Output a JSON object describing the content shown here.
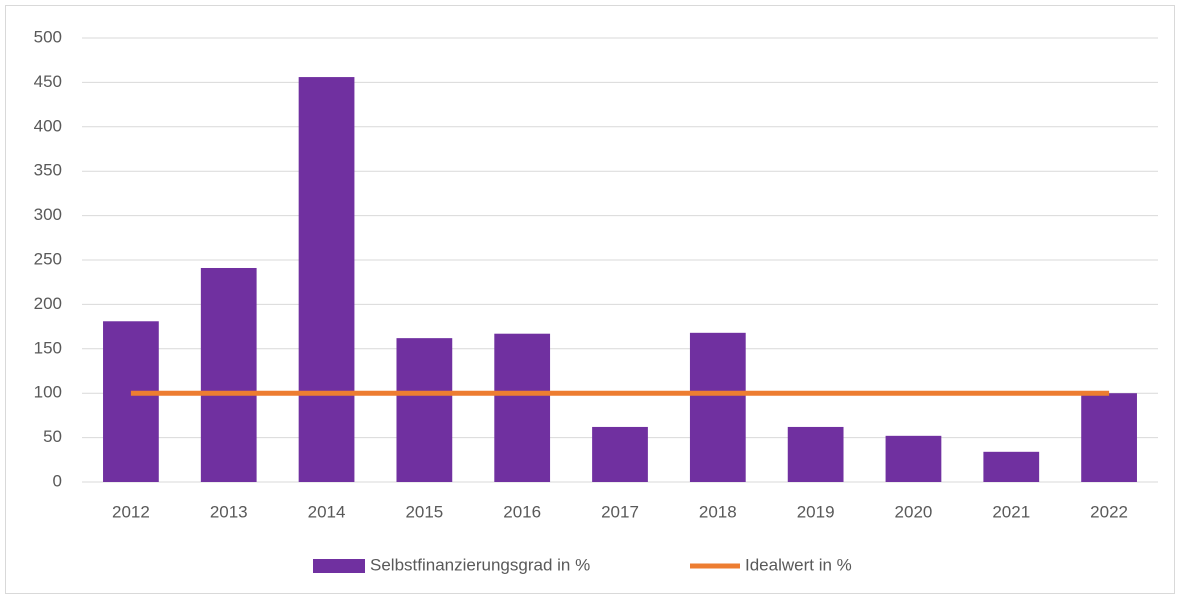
{
  "chart_data": {
    "type": "bar",
    "categories": [
      "2012",
      "2013",
      "2014",
      "2015",
      "2016",
      "2017",
      "2018",
      "2019",
      "2020",
      "2021",
      "2022"
    ],
    "series": [
      {
        "name": "Selbstfinanzierungsgrad in %",
        "color": "#7030a0",
        "type": "bar",
        "values": [
          181,
          241,
          456,
          162,
          167,
          62,
          168,
          62,
          52,
          34,
          100
        ]
      },
      {
        "name": "Idealwert in %",
        "color": "#ed7d31",
        "type": "line",
        "values": [
          100,
          100,
          100,
          100,
          100,
          100,
          100,
          100,
          100,
          100,
          100
        ]
      }
    ],
    "ylim": [
      0,
      500
    ],
    "yticks": [
      0,
      50,
      100,
      150,
      200,
      250,
      300,
      350,
      400,
      450,
      500
    ],
    "grid": true,
    "legend": "bottom"
  }
}
